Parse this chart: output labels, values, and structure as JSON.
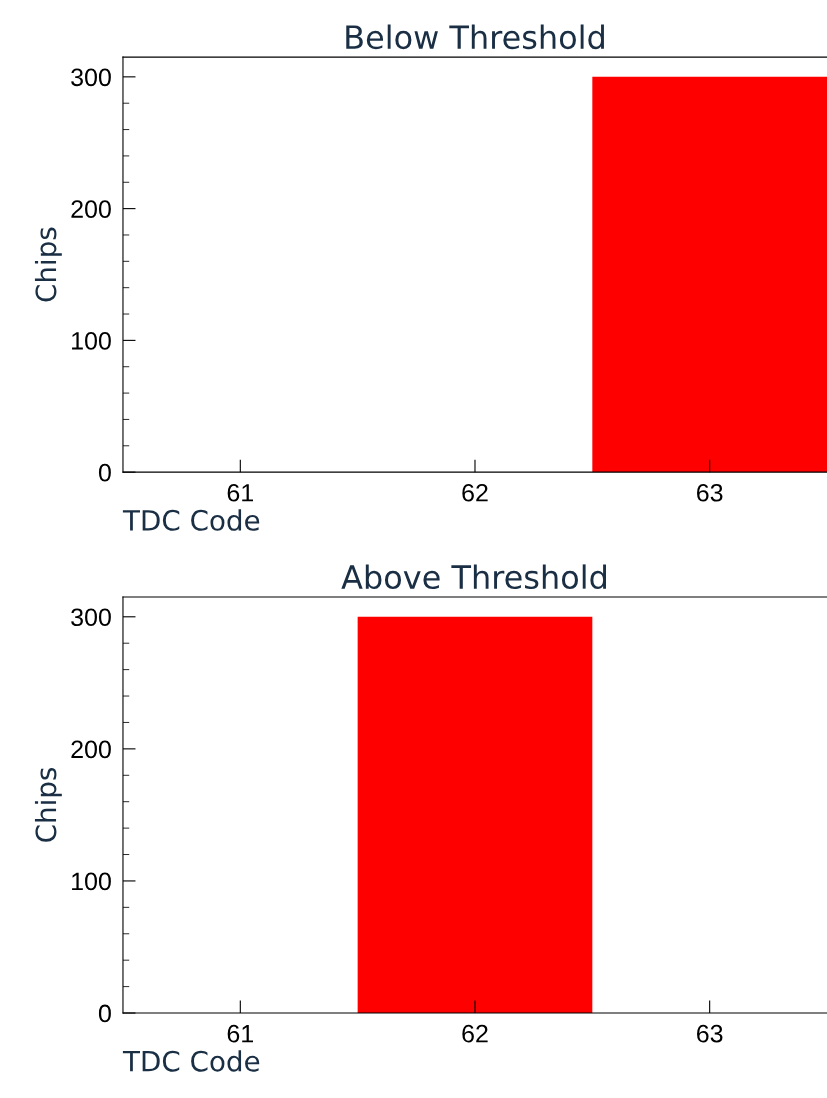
{
  "chart_data": [
    {
      "type": "histogram",
      "title": "Below Threshold",
      "xlabel": "TDC Code",
      "ylabel": "Chips",
      "bins": [
        60.5,
        61.5,
        62.5,
        63.5
      ],
      "values": [
        0,
        0,
        300
      ],
      "color": "#ff0000",
      "xlim": [
        60.5,
        63.5
      ],
      "xticks": [
        61,
        62,
        63
      ],
      "ylim": [
        0,
        315
      ],
      "yticks": [
        0,
        100,
        200,
        300
      ],
      "grid": false,
      "legend": false
    },
    {
      "type": "histogram",
      "title": "Above Threshold",
      "xlabel": "TDC Code",
      "ylabel": "Chips",
      "bins": [
        60.5,
        61.5,
        62.5,
        63.5
      ],
      "values": [
        0,
        300,
        0
      ],
      "color": "#ff0000",
      "xlim": [
        60.5,
        63.5
      ],
      "xticks": [
        61,
        62,
        63
      ],
      "ylim": [
        0,
        315
      ],
      "yticks": [
        0,
        100,
        200,
        300
      ],
      "grid": false,
      "legend": false
    }
  ]
}
